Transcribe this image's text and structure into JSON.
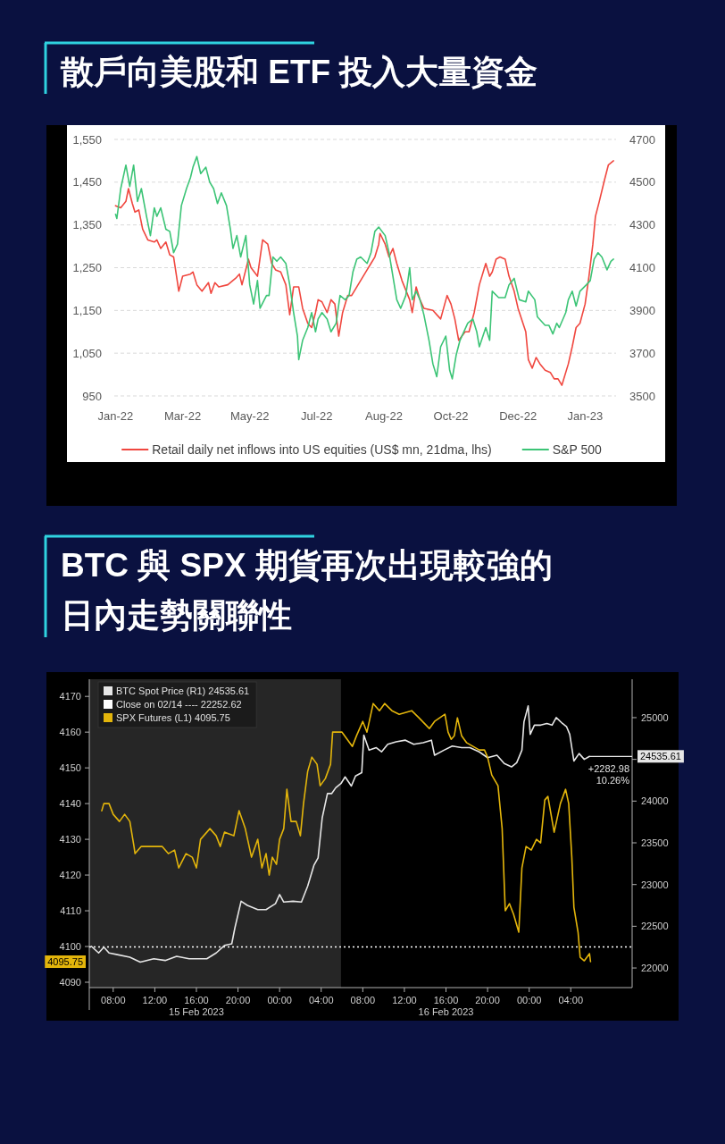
{
  "chart_data": [
    {
      "type": "line",
      "title": "散戶向美股和 ETF 投入大量資金",
      "xlim": [
        "2022-01-27",
        "2023-02-20"
      ],
      "xticks": [
        {
          "value": "2022-01-28",
          "label": "Jan-22"
        },
        {
          "value": "2022-03-21",
          "label": "Mar-22"
        },
        {
          "value": "2022-05-12",
          "label": "May-22"
        },
        {
          "value": "2022-07-03",
          "label": "Jul-22"
        },
        {
          "value": "2022-08-24",
          "label": "Aug-22"
        },
        {
          "value": "2022-10-15",
          "label": "Oct-22"
        },
        {
          "value": "2022-12-06",
          "label": "Dec-22"
        },
        {
          "value": "2023-01-27",
          "label": "Jan-23"
        }
      ],
      "ylim": [
        950,
        1550
      ],
      "yticks": [
        950,
        {
          "value": 1050,
          "label": "1,050"
        },
        {
          "value": 1150,
          "label": "1,150"
        },
        {
          "value": 1250,
          "label": "1,250"
        },
        {
          "value": 1350,
          "label": "1,350"
        },
        {
          "value": 1450,
          "label": "1,450"
        },
        {
          "value": 1550,
          "label": "1,550"
        }
      ],
      "y2lim": [
        3500,
        4700
      ],
      "y2ticks": [
        3500,
        3700,
        3900,
        4100,
        4300,
        4500,
        4700
      ],
      "grid": "y",
      "legend": "bottom",
      "series": [
        {
          "name": "Retail daily net inflows into US equities (US$ mn, 21dma, lhs)",
          "color": "#f0473f",
          "x": [
            "2022-01-28",
            "2022-02-01",
            "2022-02-05",
            "2022-02-07",
            "2022-02-10",
            "2022-02-12",
            "2022-02-15",
            "2022-02-18",
            "2022-02-22",
            "2022-02-27",
            "2022-03-01",
            "2022-03-04",
            "2022-03-08",
            "2022-03-11",
            "2022-03-14",
            "2022-03-17",
            "2022-03-18",
            "2022-03-21",
            "2022-03-27",
            "2022-03-29",
            "2022-04-01",
            "2022-04-05",
            "2022-04-10",
            "2022-04-12",
            "2022-04-15",
            "2022-04-18",
            "2022-04-25",
            "2022-05-01",
            "2022-05-04",
            "2022-05-06",
            "2022-05-11",
            "2022-05-13",
            "2022-05-18",
            "2022-05-22",
            "2022-05-26",
            "2022-05-29",
            "2022-06-01",
            "2022-06-05",
            "2022-06-09",
            "2022-06-12",
            "2022-06-15",
            "2022-06-19",
            "2022-06-22",
            "2022-06-26",
            "2022-06-29",
            "2022-07-02",
            "2022-07-04",
            "2022-07-07",
            "2022-07-11",
            "2022-07-14",
            "2022-07-17",
            "2022-07-20",
            "2022-07-23",
            "2022-07-27",
            "2022-07-30",
            "2022-08-04",
            "2022-08-11",
            "2022-08-14",
            "2022-08-17",
            "2022-08-20",
            "2022-08-21",
            "2022-08-25",
            "2022-08-28",
            "2022-08-31",
            "2022-09-03",
            "2022-09-07",
            "2022-09-13",
            "2022-09-15",
            "2022-09-18",
            "2022-09-21",
            "2022-09-24",
            "2022-10-01",
            "2022-10-04",
            "2022-10-07",
            "2022-10-12",
            "2022-10-15",
            "2022-10-18",
            "2022-10-21",
            "2022-10-26",
            "2022-10-29",
            "2022-11-02",
            "2022-11-06",
            "2022-11-11",
            "2022-11-14",
            "2022-11-16",
            "2022-11-19",
            "2022-11-22",
            "2022-11-26",
            "2022-11-29",
            "2022-12-03",
            "2022-12-06",
            "2022-12-12",
            "2022-12-14",
            "2022-12-17",
            "2022-12-20",
            "2022-12-23",
            "2022-12-27",
            "2022-12-31",
            "2023-01-03",
            "2023-01-06",
            "2023-01-09",
            "2023-01-14",
            "2023-01-17",
            "2023-01-20",
            "2023-01-23",
            "2023-01-27",
            "2023-01-30",
            "2023-02-02",
            "2023-02-04",
            "2023-02-07",
            "2023-02-11",
            "2023-02-14",
            "2023-02-18"
          ],
          "values": [
            1395,
            1390,
            1405,
            1435,
            1400,
            1380,
            1385,
            1340,
            1315,
            1310,
            1315,
            1295,
            1310,
            1280,
            1275,
            1215,
            1195,
            1230,
            1235,
            1240,
            1210,
            1195,
            1215,
            1190,
            1215,
            1205,
            1210,
            1225,
            1235,
            1210,
            1270,
            1250,
            1230,
            1315,
            1305,
            1260,
            1245,
            1240,
            1210,
            1140,
            1205,
            1205,
            1155,
            1120,
            1110,
            1145,
            1175,
            1170,
            1145,
            1175,
            1165,
            1090,
            1145,
            1185,
            1185,
            1210,
            1245,
            1260,
            1275,
            1305,
            1330,
            1305,
            1275,
            1295,
            1260,
            1220,
            1175,
            1145,
            1205,
            1175,
            1155,
            1150,
            1140,
            1130,
            1185,
            1165,
            1130,
            1080,
            1100,
            1100,
            1145,
            1210,
            1260,
            1230,
            1240,
            1270,
            1275,
            1270,
            1230,
            1195,
            1155,
            1100,
            1035,
            1015,
            1040,
            1025,
            1010,
            1005,
            990,
            990,
            975,
            1025,
            1065,
            1110,
            1120,
            1165,
            1230,
            1305,
            1370,
            1405,
            1455,
            1490,
            1500
          ]
        },
        {
          "name": "S&P 500",
          "color": "#3cc476",
          "axis": "y2",
          "x": [
            "2022-01-28",
            "2022-01-29",
            "2022-02-01",
            "2022-02-05",
            "2022-02-08",
            "2022-02-11",
            "2022-02-14",
            "2022-02-17",
            "2022-02-21",
            "2022-02-24",
            "2022-02-27",
            "2022-03-01",
            "2022-03-04",
            "2022-03-08",
            "2022-03-11",
            "2022-03-14",
            "2022-03-17",
            "2022-03-20",
            "2022-03-24",
            "2022-03-27",
            "2022-03-29",
            "2022-04-01",
            "2022-04-04",
            "2022-04-08",
            "2022-04-11",
            "2022-04-14",
            "2022-04-17",
            "2022-04-20",
            "2022-04-24",
            "2022-04-27",
            "2022-04-29",
            "2022-05-02",
            "2022-05-05",
            "2022-05-09",
            "2022-05-12",
            "2022-05-15",
            "2022-05-18",
            "2022-05-20",
            "2022-05-25",
            "2022-05-27",
            "2022-05-30",
            "2022-06-02",
            "2022-06-05",
            "2022-06-09",
            "2022-06-12",
            "2022-06-15",
            "2022-06-18",
            "2022-06-19",
            "2022-06-22",
            "2022-06-26",
            "2022-06-29",
            "2022-07-02",
            "2022-07-04",
            "2022-07-07",
            "2022-07-11",
            "2022-07-14",
            "2022-07-18",
            "2022-07-21",
            "2022-07-25",
            "2022-07-28",
            "2022-07-31",
            "2022-08-03",
            "2022-08-06",
            "2022-08-11",
            "2022-08-14",
            "2022-08-17",
            "2022-08-20",
            "2022-08-25",
            "2022-08-28",
            "2022-08-31",
            "2022-09-03",
            "2022-09-06",
            "2022-09-10",
            "2022-09-13",
            "2022-09-15",
            "2022-09-18",
            "2022-09-21",
            "2022-09-24",
            "2022-09-28",
            "2022-10-01",
            "2022-10-04",
            "2022-10-07",
            "2022-10-11",
            "2022-10-14",
            "2022-10-16",
            "2022-10-19",
            "2022-10-22",
            "2022-10-28",
            "2022-11-01",
            "2022-11-04",
            "2022-11-06",
            "2022-11-11",
            "2022-11-14",
            "2022-11-16",
            "2022-11-21",
            "2022-11-26",
            "2022-11-29",
            "2022-12-03",
            "2022-12-07",
            "2022-12-12",
            "2022-12-14",
            "2022-12-19",
            "2022-12-21",
            "2022-12-27",
            "2022-12-30",
            "2023-01-02",
            "2023-01-05",
            "2023-01-07",
            "2023-01-12",
            "2023-01-14",
            "2023-01-17",
            "2023-01-20",
            "2023-01-23",
            "2023-01-28",
            "2023-01-31",
            "2023-02-03",
            "2023-02-06",
            "2023-02-09",
            "2023-02-13",
            "2023-02-16",
            "2023-02-18"
          ],
          "values": [
            4350,
            4330,
            4470,
            4580,
            4480,
            4580,
            4410,
            4470,
            4340,
            4250,
            4380,
            4340,
            4380,
            4280,
            4270,
            4170,
            4210,
            4390,
            4470,
            4520,
            4570,
            4620,
            4540,
            4570,
            4500,
            4470,
            4400,
            4450,
            4390,
            4280,
            4190,
            4250,
            4150,
            4250,
            4020,
            3930,
            4040,
            3910,
            3970,
            3970,
            4150,
            4130,
            4150,
            4120,
            4020,
            3890,
            3780,
            3670,
            3760,
            3820,
            3890,
            3800,
            3860,
            3890,
            3860,
            3800,
            3840,
            3970,
            3950,
            3970,
            4080,
            4140,
            4150,
            4120,
            4170,
            4270,
            4290,
            4250,
            4170,
            4060,
            3950,
            3910,
            3970,
            4100,
            3950,
            3990,
            3950,
            3880,
            3760,
            3650,
            3590,
            3730,
            3780,
            3620,
            3580,
            3690,
            3760,
            3840,
            3860,
            3800,
            3730,
            3820,
            3760,
            3990,
            3960,
            3960,
            4020,
            4050,
            3950,
            3940,
            3990,
            3950,
            3870,
            3830,
            3830,
            3790,
            3840,
            3820,
            3890,
            3950,
            3990,
            3920,
            3990,
            4020,
            4040,
            4140,
            4170,
            4150,
            4090,
            4130,
            4140
          ]
        }
      ]
    },
    {
      "type": "line",
      "title": "BTC 與 SPX 期貨再次出現較強的日內走勢關聯性",
      "xlim": [
        "2023-02-15T05:42",
        "2023-02-17T09:54"
      ],
      "xticks": [
        {
          "value": "2023-02-15T08:00",
          "label": "08:00"
        },
        {
          "value": "2023-02-15T12:00",
          "label": "12:00"
        },
        {
          "value": "2023-02-15T16:00",
          "label": "16:00\n15 Feb 2023"
        },
        {
          "value": "2023-02-15T20:00",
          "label": "20:00"
        },
        {
          "value": "2023-02-16T00:00",
          "label": "00:00"
        },
        {
          "value": "2023-02-16T04:00",
          "label": "04:00"
        },
        {
          "value": "2023-02-16T08:00",
          "label": "08:00"
        },
        {
          "value": "2023-02-16T12:00",
          "label": "12:00"
        },
        {
          "value": "2023-02-16T16:00",
          "label": "16:00\n16 Feb 2023"
        },
        {
          "value": "2023-02-16T20:00",
          "label": "20:00"
        },
        {
          "value": "2023-02-17T00:00",
          "label": "00:00"
        },
        {
          "value": "2023-02-17T04:00",
          "label": "04:00"
        }
      ],
      "ylim": [
        4088.5,
        4174.8
      ],
      "yticks": [
        4090,
        4100,
        4110,
        4120,
        4130,
        4140,
        4150,
        4160,
        4170
      ],
      "y2lim": [
        21765,
        25460
      ],
      "y2ticks": [
        22000,
        22500,
        23000,
        23500,
        24000,
        {
          "value": 24500,
          "label": null
        },
        25000
      ],
      "legend": "top left",
      "bands": [
        {
          "axis": "x",
          "from": "2023-02-15T05:42",
          "to": "2023-02-16T05:54",
          "color": "#262626"
        }
      ],
      "ref_lines": [
        {
          "axis": "y2",
          "value": 22252.62,
          "label": "Close on 02/14 ---- 22252.62",
          "color": "#ffffff",
          "line_style": "dotted"
        }
      ],
      "series": [
        {
          "name": "BTC Spot Price (R1) 24535.61",
          "color": "#e6e6e6",
          "axis": "y2",
          "x": [
            "2023-02-15T05:54",
            "2023-02-15T06:36",
            "2023-02-15T07:06",
            "2023-02-15T07:36",
            "2023-02-15T08:24",
            "2023-02-15T09:36",
            "2023-02-15T10:36",
            "2023-02-15T11:54",
            "2023-02-15T13:00",
            "2023-02-15T14:06",
            "2023-02-15T15:18",
            "2023-02-15T17:00",
            "2023-02-15T17:54",
            "2023-02-15T18:42",
            "2023-02-15T19:24",
            "2023-02-15T19:42",
            "2023-02-15T20:18",
            "2023-02-15T20:54",
            "2023-02-15T21:54",
            "2023-02-15T22:42",
            "2023-02-15T23:36",
            "2023-02-16T00:00",
            "2023-02-16T00:24",
            "2023-02-16T01:18",
            "2023-02-16T02:06",
            "2023-02-16T02:42",
            "2023-02-16T03:18",
            "2023-02-16T03:42",
            "2023-02-16T04:06",
            "2023-02-16T04:36",
            "2023-02-16T05:00",
            "2023-02-16T05:24",
            "2023-02-16T05:54",
            "2023-02-16T06:18",
            "2023-02-16T06:54",
            "2023-02-16T07:18",
            "2023-02-16T07:54",
            "2023-02-16T08:06",
            "2023-02-16T08:36",
            "2023-02-16T09:18",
            "2023-02-16T09:48",
            "2023-02-16T10:24",
            "2023-02-16T11:12",
            "2023-02-16T12:06",
            "2023-02-16T12:54",
            "2023-02-16T13:48",
            "2023-02-16T14:36",
            "2023-02-16T14:54",
            "2023-02-16T15:48",
            "2023-02-16T16:36",
            "2023-02-16T17:30",
            "2023-02-16T18:18",
            "2023-02-16T19:12",
            "2023-02-16T20:00",
            "2023-02-16T20:54",
            "2023-02-16T21:36",
            "2023-02-16T22:18",
            "2023-02-16T22:48",
            "2023-02-16T23:18",
            "2023-02-16T23:30",
            "2023-02-16T23:54",
            "2023-02-17T00:06",
            "2023-02-17T00:30",
            "2023-02-17T01:06",
            "2023-02-17T01:42",
            "2023-02-17T02:12",
            "2023-02-17T02:36",
            "2023-02-17T03:12",
            "2023-02-17T03:36",
            "2023-02-17T03:54",
            "2023-02-17T04:18",
            "2023-02-17T04:48",
            "2023-02-17T05:18",
            "2023-02-17T05:48"
          ],
          "values": [
            22260,
            22180,
            22250,
            22180,
            22160,
            22130,
            22070,
            22110,
            22090,
            22140,
            22110,
            22110,
            22180,
            22270,
            22290,
            22480,
            22800,
            22750,
            22700,
            22700,
            22770,
            22880,
            22790,
            22800,
            22790,
            22980,
            23230,
            23320,
            23800,
            24090,
            24090,
            24160,
            24210,
            24290,
            24180,
            24300,
            24340,
            24790,
            24610,
            24640,
            24590,
            24680,
            24710,
            24730,
            24680,
            24700,
            24730,
            24550,
            24610,
            24660,
            24640,
            24640,
            24590,
            24520,
            24550,
            24450,
            24410,
            24460,
            24610,
            24950,
            25140,
            24800,
            24910,
            24910,
            24930,
            24910,
            25000,
            24930,
            24890,
            24800,
            24480,
            24570,
            24500,
            24535.61
          ]
        },
        {
          "name": "SPX Futures (L1) 4095.75",
          "color": "#e3b50b",
          "x": [
            "2023-02-15T06:54",
            "2023-02-15T07:06",
            "2023-02-15T07:36",
            "2023-02-15T08:00",
            "2023-02-15T08:36",
            "2023-02-15T09:06",
            "2023-02-15T09:36",
            "2023-02-15T10:00",
            "2023-02-15T10:06",
            "2023-02-15T10:42",
            "2023-02-15T11:18",
            "2023-02-15T12:06",
            "2023-02-15T12:42",
            "2023-02-15T13:18",
            "2023-02-15T13:54",
            "2023-02-15T14:18",
            "2023-02-15T15:00",
            "2023-02-15T15:36",
            "2023-02-15T16:00",
            "2023-02-15T16:24",
            "2023-02-15T17:18",
            "2023-02-15T17:54",
            "2023-02-15T18:18",
            "2023-02-15T18:42",
            "2023-02-15T19:36",
            "2023-02-15T20:06",
            "2023-02-15T20:42",
            "2023-02-15T21:18",
            "2023-02-15T21:54",
            "2023-02-15T22:18",
            "2023-02-15T22:42",
            "2023-02-15T23:00",
            "2023-02-15T23:18",
            "2023-02-15T23:42",
            "2023-02-16T00:00",
            "2023-02-16T00:24",
            "2023-02-16T00:42",
            "2023-02-16T01:06",
            "2023-02-16T01:36",
            "2023-02-16T02:00",
            "2023-02-16T02:18",
            "2023-02-16T02:42",
            "2023-02-16T03:06",
            "2023-02-16T03:36",
            "2023-02-16T03:54",
            "2023-02-16T04:24",
            "2023-02-16T04:54",
            "2023-02-16T05:06",
            "2023-02-16T05:24",
            "2023-02-16T06:00",
            "2023-02-16T07:00",
            "2023-02-16T07:24",
            "2023-02-16T08:00",
            "2023-02-16T08:24",
            "2023-02-16T09:00",
            "2023-02-16T09:36",
            "2023-02-16T10:06",
            "2023-02-16T10:48",
            "2023-02-16T11:30",
            "2023-02-16T12:42",
            "2023-02-16T13:24",
            "2023-02-16T14:24",
            "2023-02-16T14:54",
            "2023-02-16T15:54",
            "2023-02-16T16:12",
            "2023-02-16T16:30",
            "2023-02-16T16:48",
            "2023-02-16T17:06",
            "2023-02-16T17:30",
            "2023-02-16T18:00",
            "2023-02-16T18:36",
            "2023-02-16T19:12",
            "2023-02-16T19:42",
            "2023-02-16T20:00",
            "2023-02-16T20:24",
            "2023-02-16T21:00",
            "2023-02-16T21:24",
            "2023-02-16T21:42",
            "2023-02-16T22:06",
            "2023-02-16T22:30",
            "2023-02-16T23:00",
            "2023-02-16T23:18",
            "2023-02-16T23:42",
            "2023-02-17T00:12",
            "2023-02-17T00:42",
            "2023-02-17T01:06",
            "2023-02-17T01:30",
            "2023-02-17T01:48",
            "2023-02-17T02:24",
            "2023-02-17T03:00",
            "2023-02-17T03:30",
            "2023-02-17T03:48",
            "2023-02-17T04:06",
            "2023-02-17T04:18",
            "2023-02-17T04:42",
            "2023-02-17T04:54",
            "2023-02-17T05:18",
            "2023-02-17T05:48",
            "2023-02-17T05:54"
          ],
          "values": [
            4138,
            4140,
            4140,
            4137,
            4135,
            4137,
            4135,
            4128,
            4126,
            4128,
            4128,
            4128,
            4128,
            4126,
            4127,
            4122,
            4126,
            4125,
            4122,
            4130,
            4133,
            4131,
            4128,
            4132,
            4131,
            4138,
            4133,
            4125,
            4130,
            4122,
            4126,
            4120,
            4125,
            4123,
            4130,
            4133,
            4144,
            4135,
            4135,
            4131,
            4140,
            4149,
            4153,
            4151,
            4145,
            4147,
            4151,
            4160,
            4160,
            4160,
            4156,
            4159,
            4163,
            4160,
            4168,
            4166,
            4168,
            4166,
            4165,
            4166,
            4164,
            4161,
            4163,
            4165,
            4160,
            4158,
            4159,
            4164,
            4159,
            4157,
            4156,
            4155,
            4155,
            4153,
            4148,
            4145,
            4133,
            4110,
            4112,
            4109,
            4104,
            4122,
            4128,
            4127,
            4130,
            4129,
            4141,
            4142,
            4132,
            4140,
            4144,
            4140,
            4125,
            4111,
            4104,
            4097,
            4096,
            4098,
            4095.75
          ]
        }
      ],
      "annotations": [
        "24535.61",
        "4095.75",
        "+2282.98\n10.26%"
      ]
    }
  ]
}
